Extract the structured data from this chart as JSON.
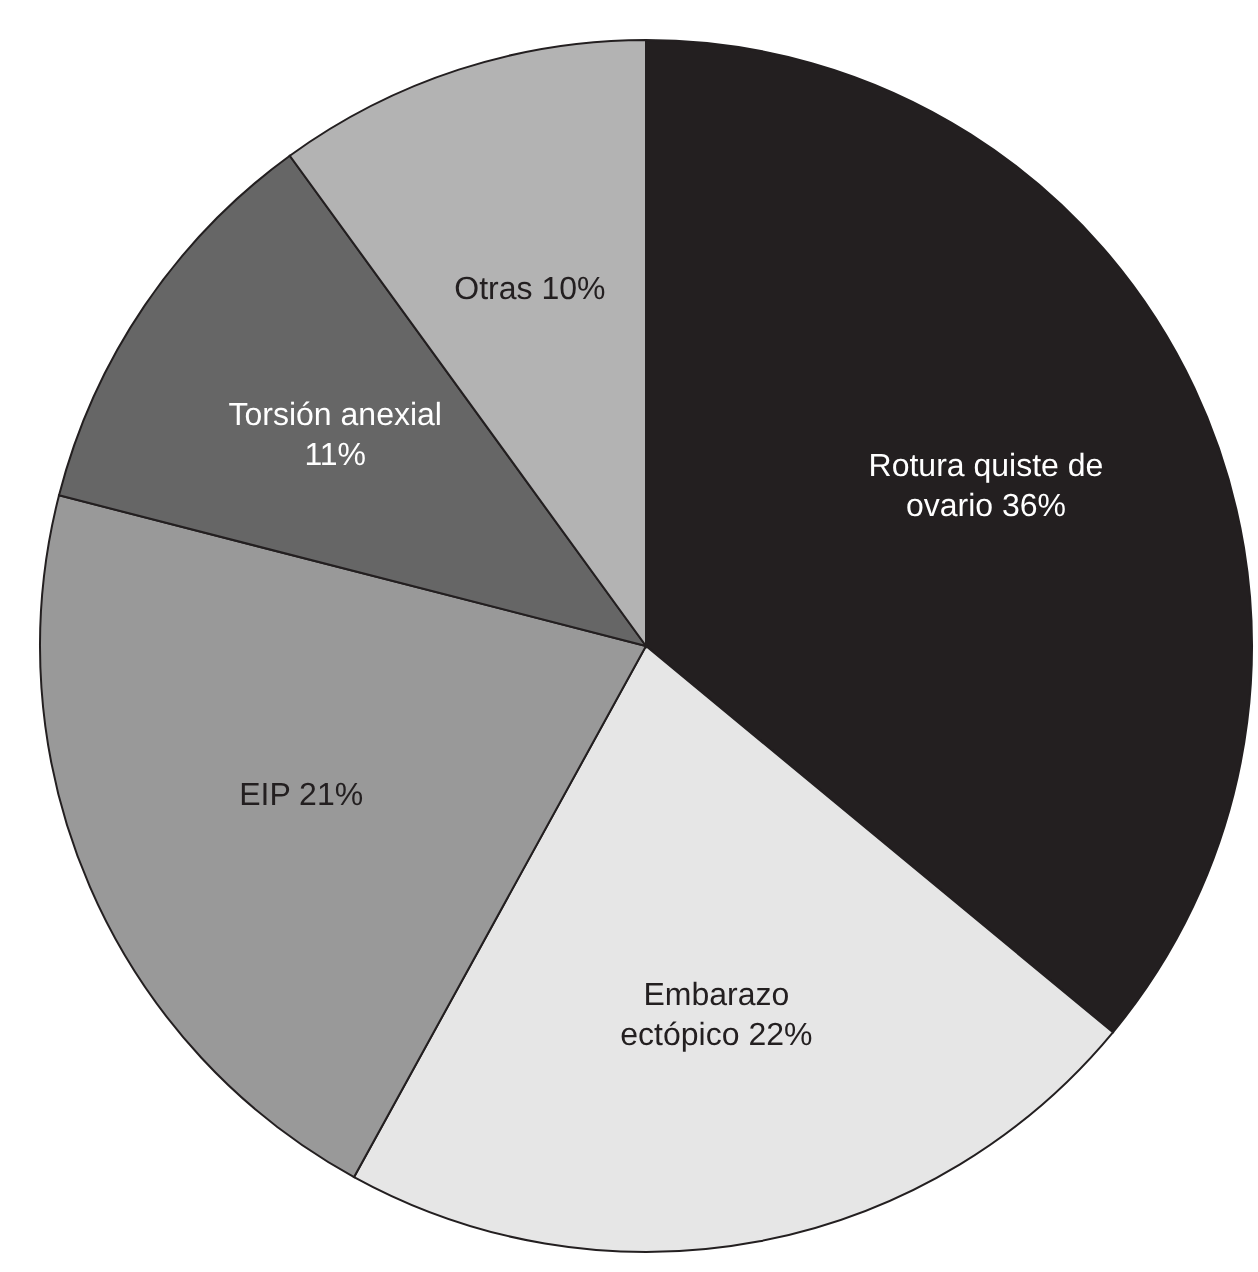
{
  "chart_data": {
    "type": "pie",
    "categories": [
      "Rotura quiste de ovario",
      "Embarazo ectópico",
      "EIP",
      "Torsión anexial",
      "Otras"
    ],
    "values": [
      36,
      22,
      21,
      11,
      10
    ],
    "value_labels": [
      "36%",
      "22%",
      "21%",
      "11%",
      "10%"
    ],
    "colors": [
      "#231f20",
      "#e6e6e6",
      "#999999",
      "#666666",
      "#b3b3b3"
    ]
  }
}
